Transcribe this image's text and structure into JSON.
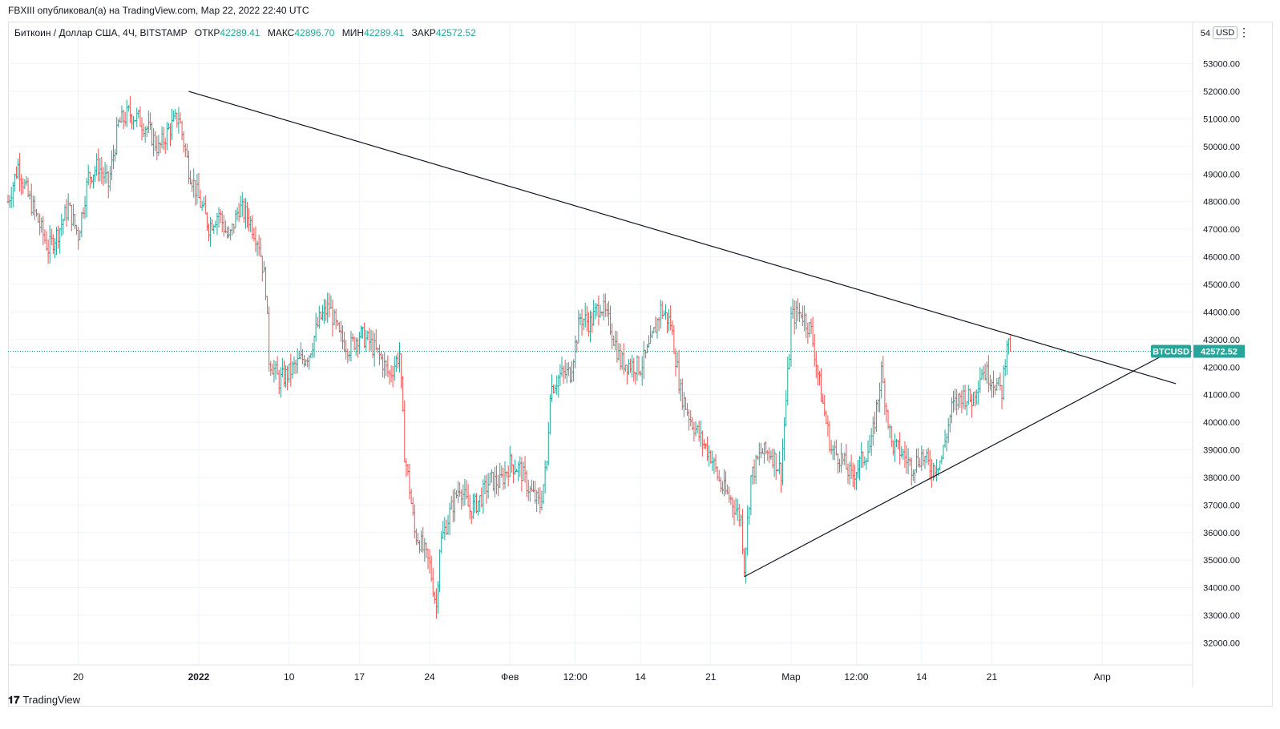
{
  "header": {
    "published": "FBXIII опубликовал(а) на TradingView.com, Мар 22, 2022 22:40 UTC",
    "symbol": "Биткоин / Доллар США, 4Ч, BITSTAMP",
    "open_label": "ОТКР",
    "open_value": "42289.41",
    "high_label": "МАКС",
    "high_value": "42896.70",
    "low_label": "МИН",
    "low_value": "42289.41",
    "close_label": "ЗАКР",
    "close_value": "42572.52",
    "currency": "USD",
    "more_icon": "vertical-dots-icon"
  },
  "footer": {
    "logo_icon": "tradingview-logo-icon",
    "brand": "TradingView"
  },
  "chart_data": {
    "type": "bar",
    "style": "ohlc",
    "symbol": "BTCUSD",
    "last_price": 42572.52,
    "last_price_label": "42572.52",
    "colors": {
      "up": "#26a69a",
      "down": "#ef5350",
      "last_line": "#26a69a",
      "trend": "#131722",
      "grid": "#f0f3fa"
    },
    "x_range": [
      "2021-12-13",
      "2022-04-10"
    ],
    "ylim": [
      31200,
      54500
    ],
    "y_ticks": [
      32000,
      33000,
      34000,
      35000,
      36000,
      37000,
      38000,
      39000,
      40000,
      41000,
      42000,
      43000,
      44000,
      45000,
      46000,
      47000,
      48000,
      49000,
      50000,
      51000,
      52000,
      53000
    ],
    "y_tick_labels": [
      "32000.00",
      "33000.00",
      "34000.00",
      "35000.00",
      "36000.00",
      "37000.00",
      "38000.00",
      "39000.00",
      "40000.00",
      "41000.00",
      "42000.00",
      "43000.00",
      "44000.00",
      "45000.00",
      "46000.00",
      "47000.00",
      "48000.00",
      "49000.00",
      "50000.00",
      "51000.00",
      "52000.00",
      "53000.00"
    ],
    "y_top_label": "54",
    "x_ticks": [
      {
        "date": "2021-12-20",
        "label": "20"
      },
      {
        "date": "2022-01-01",
        "label": "2022"
      },
      {
        "date": "2022-01-10",
        "label": "10"
      },
      {
        "date": "2022-01-17",
        "label": "17"
      },
      {
        "date": "2022-01-24",
        "label": "24"
      },
      {
        "date": "2022-02-01",
        "label": "Фев"
      },
      {
        "date": "2022-02-07T12:00",
        "label": "12:00"
      },
      {
        "date": "2022-02-14",
        "label": "14"
      },
      {
        "date": "2022-02-21",
        "label": "21"
      },
      {
        "date": "2022-03-01",
        "label": "Мар"
      },
      {
        "date": "2022-03-07T12:00",
        "label": "12:00"
      },
      {
        "date": "2022-03-14",
        "label": "14"
      },
      {
        "date": "2022-03-21",
        "label": "21"
      },
      {
        "date": "2022-04-01",
        "label": "Апр"
      }
    ],
    "price_path": [
      [
        "2021-12-13T00:00",
        48000
      ],
      [
        "2021-12-14T00:00",
        49300
      ],
      [
        "2021-12-15T00:00",
        48200
      ],
      [
        "2021-12-16T00:00",
        47300
      ],
      [
        "2021-12-17T00:00",
        46300
      ],
      [
        "2021-12-18T00:00",
        46900
      ],
      [
        "2021-12-19T00:00",
        47800
      ],
      [
        "2021-12-20T00:00",
        46800
      ],
      [
        "2021-12-21T00:00",
        48900
      ],
      [
        "2021-12-22T00:00",
        49300
      ],
      [
        "2021-12-23T00:00",
        48600
      ],
      [
        "2021-12-24T00:00",
        50800
      ],
      [
        "2021-12-25T00:00",
        51200
      ],
      [
        "2021-12-26T00:00",
        51000
      ],
      [
        "2021-12-27T00:00",
        50600
      ],
      [
        "2021-12-28T00:00",
        49900
      ],
      [
        "2021-12-29T00:00",
        50600
      ],
      [
        "2021-12-30T00:00",
        51100
      ],
      [
        "2021-12-31T00:00",
        49200
      ],
      [
        "2022-01-01T00:00",
        48100
      ],
      [
        "2022-01-02T00:00",
        47100
      ],
      [
        "2022-01-03T00:00",
        47600
      ],
      [
        "2022-01-04T00:00",
        46600
      ],
      [
        "2022-01-05T00:00",
        47800
      ],
      [
        "2022-01-06T00:00",
        47400
      ],
      [
        "2022-01-07T00:00",
        46500
      ],
      [
        "2022-01-07T16:00",
        44900
      ],
      [
        "2022-01-08T00:00",
        42300
      ],
      [
        "2022-01-09T00:00",
        41500
      ],
      [
        "2022-01-10T00:00",
        41800
      ],
      [
        "2022-01-11T00:00",
        42200
      ],
      [
        "2022-01-12T00:00",
        42500
      ],
      [
        "2022-01-13T00:00",
        43700
      ],
      [
        "2022-01-14T00:00",
        44200
      ],
      [
        "2022-01-15T00:00",
        43100
      ],
      [
        "2022-01-16T00:00",
        42700
      ],
      [
        "2022-01-17T00:00",
        43200
      ],
      [
        "2022-01-18T00:00",
        42900
      ],
      [
        "2022-01-19T00:00",
        42400
      ],
      [
        "2022-01-20T00:00",
        41700
      ],
      [
        "2022-01-21T00:00",
        42500
      ],
      [
        "2022-01-21T12:00",
        38900
      ],
      [
        "2022-01-22T00:00",
        37600
      ],
      [
        "2022-01-22T12:00",
        36000
      ],
      [
        "2022-01-23T00:00",
        35700
      ],
      [
        "2022-01-24T00:00",
        34800
      ],
      [
        "2022-01-24T16:00",
        33300
      ],
      [
        "2022-01-25T00:00",
        35500
      ],
      [
        "2022-01-26T00:00",
        36700
      ],
      [
        "2022-01-27T00:00",
        37700
      ],
      [
        "2022-01-28T00:00",
        36800
      ],
      [
        "2022-01-29T00:00",
        37200
      ],
      [
        "2022-01-30T00:00",
        37900
      ],
      [
        "2022-01-31T00:00",
        37800
      ],
      [
        "2022-02-01T00:00",
        38500
      ],
      [
        "2022-02-02T00:00",
        38300
      ],
      [
        "2022-02-03T00:00",
        37500
      ],
      [
        "2022-02-04T00:00",
        37000
      ],
      [
        "2022-02-04T16:00",
        38500
      ],
      [
        "2022-02-05T00:00",
        41200
      ],
      [
        "2022-02-06T00:00",
        41700
      ],
      [
        "2022-02-07T00:00",
        41800
      ],
      [
        "2022-02-08T00:00",
        43800
      ],
      [
        "2022-02-09T00:00",
        43600
      ],
      [
        "2022-02-10T00:00",
        44300
      ],
      [
        "2022-02-11T00:00",
        43500
      ],
      [
        "2022-02-12T00:00",
        42200
      ],
      [
        "2022-02-13T00:00",
        42100
      ],
      [
        "2022-02-14T00:00",
        42000
      ],
      [
        "2022-02-15T00:00",
        42800
      ],
      [
        "2022-02-16T00:00",
        44100
      ],
      [
        "2022-02-17T00:00",
        43600
      ],
      [
        "2022-02-18T00:00",
        41100
      ],
      [
        "2022-02-19T00:00",
        40100
      ],
      [
        "2022-02-20T00:00",
        39400
      ],
      [
        "2022-02-21T00:00",
        38800
      ],
      [
        "2022-02-22T00:00",
        37700
      ],
      [
        "2022-02-23T00:00",
        37200
      ],
      [
        "2022-02-24T00:00",
        36500
      ],
      [
        "2022-02-24T08:00",
        34800
      ],
      [
        "2022-02-25T00:00",
        38000
      ],
      [
        "2022-02-26T00:00",
        38900
      ],
      [
        "2022-02-27T00:00",
        38900
      ],
      [
        "2022-02-28T00:00",
        38200
      ],
      [
        "2022-02-28T20:00",
        42500
      ],
      [
        "2022-03-01T00:00",
        43800
      ],
      [
        "2022-03-02T00:00",
        44000
      ],
      [
        "2022-03-03T00:00",
        43300
      ],
      [
        "2022-03-04T00:00",
        41000
      ],
      [
        "2022-03-05T00:00",
        39000
      ],
      [
        "2022-03-06T00:00",
        38700
      ],
      [
        "2022-03-07T00:00",
        38000
      ],
      [
        "2022-03-08T00:00",
        38600
      ],
      [
        "2022-03-09T00:00",
        39200
      ],
      [
        "2022-03-10T00:00",
        41800
      ],
      [
        "2022-03-11T00:00",
        39200
      ],
      [
        "2022-03-12T00:00",
        38900
      ],
      [
        "2022-03-13T00:00",
        38400
      ],
      [
        "2022-03-14T00:00",
        38800
      ],
      [
        "2022-03-15T00:00",
        38300
      ],
      [
        "2022-03-16T00:00",
        38700
      ],
      [
        "2022-03-17T00:00",
        40500
      ],
      [
        "2022-03-18T00:00",
        41000
      ],
      [
        "2022-03-19T00:00",
        40800
      ],
      [
        "2022-03-20T00:00",
        41900
      ],
      [
        "2022-03-21T00:00",
        41600
      ],
      [
        "2022-03-22T00:00",
        41100
      ],
      [
        "2022-03-22T12:00",
        43000
      ],
      [
        "2022-03-22T20:00",
        42572.52
      ]
    ],
    "trendlines": [
      {
        "name": "resistance",
        "from": [
          "2021-12-31T00:00",
          52000
        ],
        "to": [
          "2022-04-08T08:00",
          41400
        ]
      },
      {
        "name": "support",
        "from": [
          "2022-02-24T08:00",
          34400
        ],
        "to": [
          "2022-04-07T08:00",
          42480
        ]
      }
    ]
  }
}
